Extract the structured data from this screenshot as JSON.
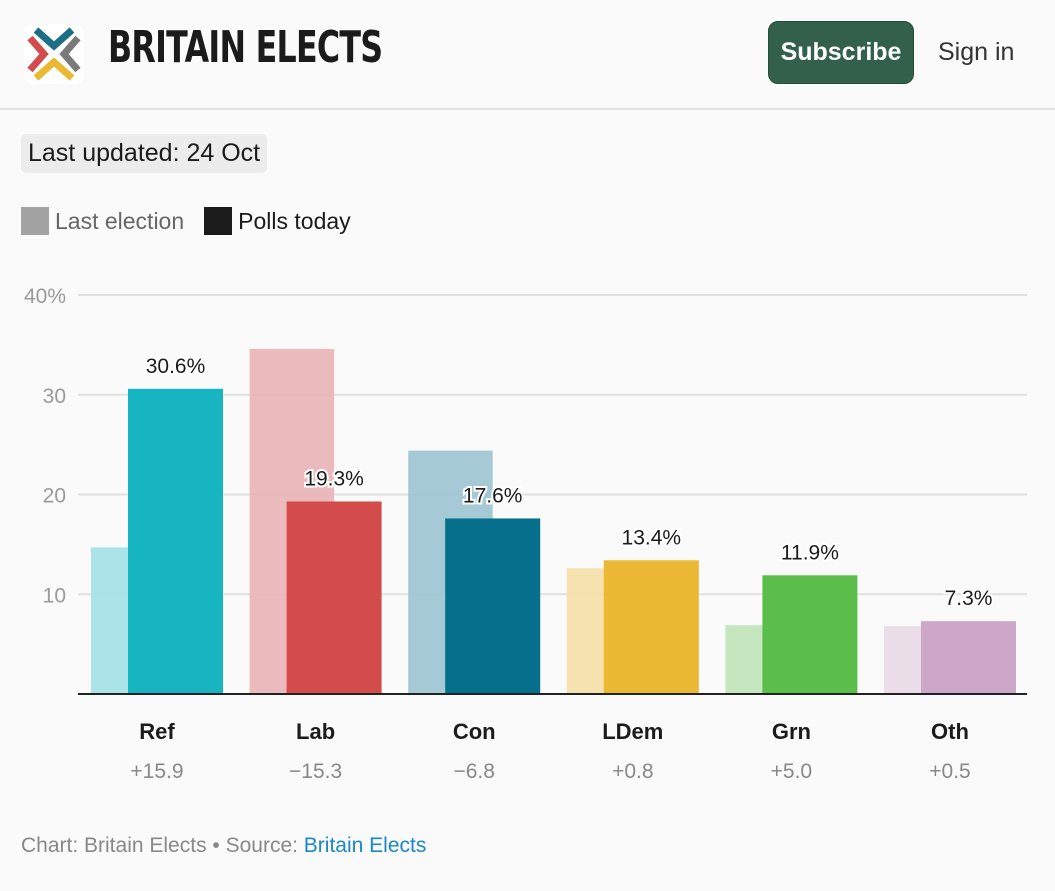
{
  "header": {
    "brand": "BRITAIN ELECTS",
    "subscribe_label": "Subscribe",
    "signin_label": "Sign in",
    "logo_colors": [
      "#1c6e86",
      "#d44b4b",
      "#7a7a7a",
      "#e8b931"
    ]
  },
  "updated": "Last updated: 24 Oct",
  "legend": {
    "last_election": "Last election",
    "polls_today": "Polls today",
    "last_color": "#a3a3a3",
    "polls_color": "#1b1b1b"
  },
  "chart_data": {
    "type": "bar",
    "categories": [
      "Ref",
      "Lab",
      "Con",
      "LDem",
      "Grn",
      "Oth"
    ],
    "series": [
      {
        "name": "Last election",
        "values": [
          14.7,
          34.6,
          24.4,
          12.6,
          6.9,
          6.8
        ]
      },
      {
        "name": "Polls today",
        "values": [
          30.6,
          19.3,
          17.6,
          13.4,
          11.9,
          7.3
        ]
      }
    ],
    "data_labels": [
      "30.6%",
      "19.3%",
      "17.6%",
      "13.4%",
      "11.9%",
      "7.3%"
    ],
    "changes": [
      "+15.9",
      "−15.3",
      "−6.8",
      "+0.8",
      "+5.0",
      "+0.5"
    ],
    "colors": [
      "#17b4c1",
      "#d44b4b",
      "#06708c",
      "#ebb834",
      "#5bbe4b",
      "#cca7c8"
    ],
    "last_colors": [
      "#a1e0e5",
      "#e9b3b5",
      "#9cc4d0",
      "#f4dfa5",
      "#bfe3b7",
      "#e9d9e5"
    ],
    "yticks": [
      "10",
      "20",
      "30",
      "40%"
    ],
    "ylim": [
      0,
      40
    ],
    "grid": true,
    "legend_position": "top-left"
  },
  "footer": {
    "prefix": "Chart: Britain Elects • Source: ",
    "source_link": "Britain Elects"
  }
}
